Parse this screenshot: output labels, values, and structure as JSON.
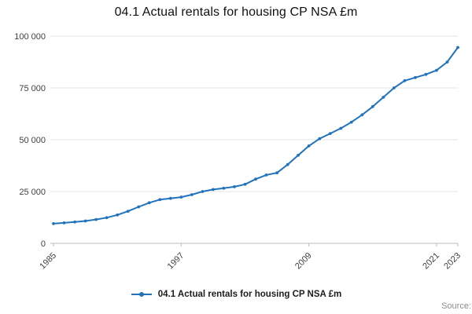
{
  "chart_data": {
    "type": "line",
    "title": "04.1 Actual rentals for housing CP NSA £m",
    "xlabel": "",
    "ylabel": "",
    "ylim": [
      0,
      100000
    ],
    "xlim": [
      1985,
      2023
    ],
    "grid": true,
    "legend_position": "bottom",
    "marker": "circle",
    "line_color": "#2073bc",
    "grid_color": "#e4e4e4",
    "axis_color": "#bdbdbd",
    "x": [
      1985,
      1986,
      1987,
      1988,
      1989,
      1990,
      1991,
      1992,
      1993,
      1994,
      1995,
      1996,
      1997,
      1998,
      1999,
      2000,
      2001,
      2002,
      2003,
      2004,
      2005,
      2006,
      2007,
      2008,
      2009,
      2010,
      2011,
      2012,
      2013,
      2014,
      2015,
      2016,
      2017,
      2018,
      2019,
      2020,
      2021,
      2022,
      2023
    ],
    "series": [
      {
        "name": "04.1 Actual rentals for housing CP NSA £m",
        "color": "#2073bc",
        "values": [
          9500,
          9900,
          10300,
          10800,
          11500,
          12400,
          13700,
          15500,
          17600,
          19600,
          21100,
          21700,
          22300,
          23500,
          25000,
          26000,
          26600,
          27300,
          28500,
          31000,
          33000,
          34000,
          38000,
          42500,
          47000,
          50500,
          53000,
          55500,
          58500,
          62000,
          66000,
          70500,
          75000,
          78500,
          80000,
          81500,
          83500,
          87500,
          94500
        ]
      }
    ],
    "y_ticks": [
      {
        "value": 0,
        "label": "0"
      },
      {
        "value": 25000,
        "label": "25 000"
      },
      {
        "value": 50000,
        "label": "50 000"
      },
      {
        "value": 75000,
        "label": "75 000"
      },
      {
        "value": 100000,
        "label": "100 000"
      }
    ],
    "x_ticks": [
      {
        "value": 1985,
        "label": "1985"
      },
      {
        "value": 1997,
        "label": "1997"
      },
      {
        "value": 2009,
        "label": "2009"
      },
      {
        "value": 2021,
        "label": "2021"
      },
      {
        "value": 2023,
        "label": "2023"
      }
    ]
  },
  "legend": {
    "label": "04.1 Actual rentals for housing CP NSA £m"
  },
  "footer": {
    "source_label": "Source:"
  }
}
